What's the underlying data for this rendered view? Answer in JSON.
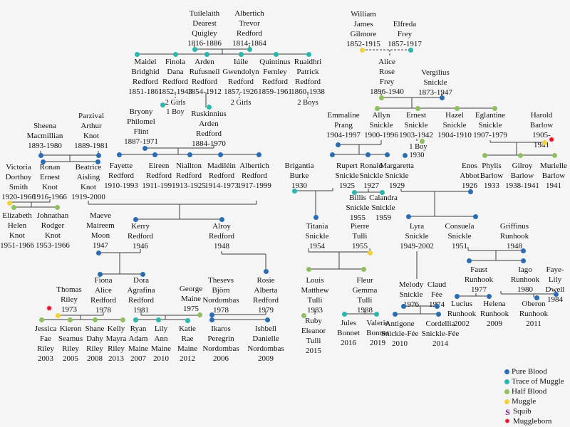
{
  "legend": {
    "items": [
      {
        "key": "pure",
        "label": "Pure Blood"
      },
      {
        "key": "trace",
        "label": "Trace of Muggle"
      },
      {
        "key": "half",
        "label": "Half Blood"
      },
      {
        "key": "muggle",
        "label": "Muggle"
      },
      {
        "key": "squib",
        "label": "Squib"
      },
      {
        "key": "muggleborn",
        "label": "Muggleborn"
      }
    ],
    "colors": {
      "pure": "#2a6db5",
      "trace": "#2ab7ae",
      "half": "#8fc05f",
      "muggle": "#f2d13a",
      "squib": "#7a2182",
      "muggleborn": "#e8112d"
    }
  },
  "icons": {
    "squib": "S",
    "muggleborn": "✹"
  },
  "people": [
    {
      "name": "Tuilelaith\nDearest\nQuigley",
      "dates": "1816-1886",
      "status": "trace"
    },
    {
      "name": "Albertich\nTrevor\nRedford",
      "dates": "1814-1864",
      "status": "trace"
    },
    {
      "name": "William\nJames\nGilmore",
      "dates": "1852-1915",
      "status": "muggle"
    },
    {
      "name": "Elfreda\nFrey",
      "dates": "1857-1917",
      "status": "trace"
    },
    {
      "name": "Maidel\nBridghid\nRedford",
      "dates": "1851-1861",
      "status": "trace"
    },
    {
      "name": "Finola\nDana\nRedford",
      "dates": "1852-1943",
      "status": "trace"
    },
    {
      "name": "Arden\nRufusneil\nRedford",
      "dates": "1854-1912",
      "status": "trace"
    },
    {
      "name": "Iúile\nGwendolyn\nRedford",
      "dates": "1857-1926",
      "status": "trace"
    },
    {
      "name": "Quintinus\nFernley\nRedford",
      "dates": "1859-1961",
      "status": "trace"
    },
    {
      "name": "Ruaidhri\nPatrick\nRedford",
      "dates": "1860-1938",
      "status": "trace"
    },
    {
      "name": "Alice\nRose\nFrey",
      "dates": "1896-1940",
      "status": "half"
    },
    {
      "name": "Vergilius\nSnickle",
      "dates": "1873-1947",
      "status": "pure"
    },
    {
      "name": "Bryony\nPhilomel\nFlint",
      "dates": "1887-1971",
      "status": "pure"
    },
    {
      "name": "Ruskinnius\nArden\nRedford",
      "dates": "1884-1970",
      "status": "trace"
    },
    {
      "name": "Sheena\nMacmillian",
      "dates": "1893-1980",
      "status": "pure"
    },
    {
      "name": "Parzival\nArthur\nKnot",
      "dates": "1889-1981",
      "status": "pure"
    },
    {
      "name": "Emmaline\nPrang",
      "dates": "1904-1997",
      "status": "pure"
    },
    {
      "name": "Allyn\nSnickle",
      "dates": "1900-1996",
      "status": "half"
    },
    {
      "name": "Ernest\nSnickle",
      "dates": "1903-1942",
      "status": "half"
    },
    {
      "name": "Hazel\nSnickle",
      "dates": "1904-1910",
      "status": "half"
    },
    {
      "name": "Eglantine\nSnickle",
      "dates": "1907-1979",
      "status": "half"
    },
    {
      "name": "Harold\nBarlow",
      "dates": "1905-1941",
      "status": "muggle"
    },
    {
      "name": "Victoria\nDorthoy\nSmith",
      "dates": "1920-1966",
      "status": "muggle"
    },
    {
      "name": "Ronan\nErnest\nKnot",
      "dates": "1916-1966",
      "status": "pure"
    },
    {
      "name": "Beatrice\nAisling\nKnot",
      "dates": "1919-2000",
      "status": "pure"
    },
    {
      "name": "Fayette\nRedford",
      "dates": "1910-1993",
      "status": "pure"
    },
    {
      "name": "Eireen\nRedford",
      "dates": "1911-1991",
      "status": "pure"
    },
    {
      "name": "Niallton\nRedford",
      "dates": "1913-1925",
      "status": "pure"
    },
    {
      "name": "Madiléin\nRedford",
      "dates": "1914-1973",
      "status": "pure"
    },
    {
      "name": "Albertich\nRedford",
      "dates": "1917-1999",
      "status": "pure"
    },
    {
      "name": "Brigantia\nBurke",
      "dates": "1930",
      "status": "trace"
    },
    {
      "name": "Rupert\nSnickle",
      "dates": "1925",
      "status": "pure"
    },
    {
      "name": "Ronald\nSnickle",
      "dates": "1927",
      "status": "pure"
    },
    {
      "name": "Margaretta\nSnickle",
      "dates": "1929",
      "status": "pure"
    },
    {
      "name": "Enos\nAbbot",
      "dates": "1926",
      "status": "pure"
    },
    {
      "name": "Phylis\nBarlow",
      "dates": "1933",
      "status": "half"
    },
    {
      "name": "Gilroy\nBarlow",
      "dates": "1938-1941",
      "status": "half"
    },
    {
      "name": "Murielle\nBarlow",
      "dates": "1941",
      "status": "half"
    },
    {
      "name": "Elizabeth\nHelen\nKnot",
      "dates": "1951-1966",
      "status": "half"
    },
    {
      "name": "Johnathan\nRodger\nKnot",
      "dates": "1953-1966",
      "status": "half"
    },
    {
      "name": "Maeve\nMaireem\nMoon",
      "dates": "1947",
      "status": "pure"
    },
    {
      "name": "Kerry\nRedford",
      "dates": "1946",
      "status": "pure"
    },
    {
      "name": "Alroy\nRedford",
      "dates": "1948",
      "status": "pure"
    },
    {
      "name": "Billis\nSnickle",
      "dates": "1955",
      "status": "trace"
    },
    {
      "name": "Calandra\nSnickle",
      "dates": "1959",
      "status": "trace"
    },
    {
      "name": "Titania\nSnickle",
      "dates": "1954",
      "status": "pure"
    },
    {
      "name": "Pierre\nTulli",
      "dates": "1955",
      "status": "muggle"
    },
    {
      "name": "Lyra\nSnickle",
      "dates": "1949-2002",
      "status": "pure"
    },
    {
      "name": "Consuela\nSnickle",
      "dates": "1951",
      "status": "pure"
    },
    {
      "name": "Griffinus\nRunhook",
      "dates": "1948",
      "status": "pure"
    },
    {
      "name": "Thomas\nRiley",
      "dates": "1973",
      "status": "muggle"
    },
    {
      "name": "Fiona\nAlice\nRedford",
      "dates": "1978",
      "status": "pure"
    },
    {
      "name": "Dora\nAgrafina\nRedford",
      "dates": "1981",
      "status": "pure"
    },
    {
      "name": "George\nMaine",
      "dates": "1975",
      "status": "half"
    },
    {
      "name": "Thesevs\nBjörn\nNordombas",
      "dates": "1978",
      "status": "pure"
    },
    {
      "name": "Rosie\nAlberta\nRedford",
      "dates": "1979",
      "status": "pure"
    },
    {
      "name": "Louis\nMatthew\nTulli",
      "dates": "1983",
      "status": "half"
    },
    {
      "name": "Fleur\nGemma\nTulli",
      "dates": "1988",
      "status": "half"
    },
    {
      "name": "Melody\nSnickle",
      "dates": "1976",
      "status": "pure"
    },
    {
      "name": "Claud\nFée",
      "dates": "1974",
      "status": "pure"
    },
    {
      "name": "Faust\nRunhook",
      "dates": "1977",
      "status": "pure"
    },
    {
      "name": "Iago\nRunhook",
      "dates": "1980",
      "status": "pure"
    },
    {
      "name": "Faye-Lily\nDwell",
      "dates": "1984",
      "status": "pure"
    },
    {
      "name": "Jessica\nFae\nRiley",
      "dates": "2003",
      "status": "half"
    },
    {
      "name": "Kieron\nSeamus\nRiley",
      "dates": "2005",
      "status": "half"
    },
    {
      "name": "Shane\nDahy\nRiley",
      "dates": "2008",
      "status": "half"
    },
    {
      "name": "Kelly\nMayra\nRiley",
      "dates": "2013",
      "status": "half"
    },
    {
      "name": "Ryan\nAdam\nMaine",
      "dates": "2007",
      "status": "trace"
    },
    {
      "name": "Lily\nAnn\nMaine",
      "dates": "2010",
      "status": "trace"
    },
    {
      "name": "Katie\nRae\nMaine",
      "dates": "2012",
      "status": "trace"
    },
    {
      "name": "Ikaros\nPeregrin\nNordombas",
      "dates": "2006",
      "status": "pure"
    },
    {
      "name": "Ishbell\nDanielle\nNordombas",
      "dates": "2009",
      "status": "pure"
    },
    {
      "name": "Ruby\nEleanor\nTulli",
      "dates": "2015",
      "status": "half"
    },
    {
      "name": "Jules\nBonnet",
      "dates": "2016",
      "status": "trace"
    },
    {
      "name": "Valerie\nBonnet",
      "dates": "2019",
      "status": "trace"
    },
    {
      "name": "Antigone\nSnickle-Fée",
      "dates": "2010",
      "status": "pure"
    },
    {
      "name": "Cordellia\nSnickle-Fée",
      "dates": "2014",
      "status": "pure"
    },
    {
      "name": "Lucius\nRunhook",
      "dates": "2002",
      "status": "pure"
    },
    {
      "name": "Helena\nRunhook",
      "dates": "2009",
      "status": "pure"
    },
    {
      "name": "Oberon\nRunhook",
      "dates": "2011",
      "status": "pure"
    }
  ],
  "notes": [
    {
      "text": "2 Girls\n1 Boy",
      "status": "trace"
    },
    {
      "text": "2 Girls",
      "status": "trace"
    },
    {
      "text": "2 Boys",
      "status": "trace"
    },
    {
      "text": "1 Boy",
      "status": "half"
    },
    {
      "text": "1930",
      "status": "pure"
    }
  ]
}
